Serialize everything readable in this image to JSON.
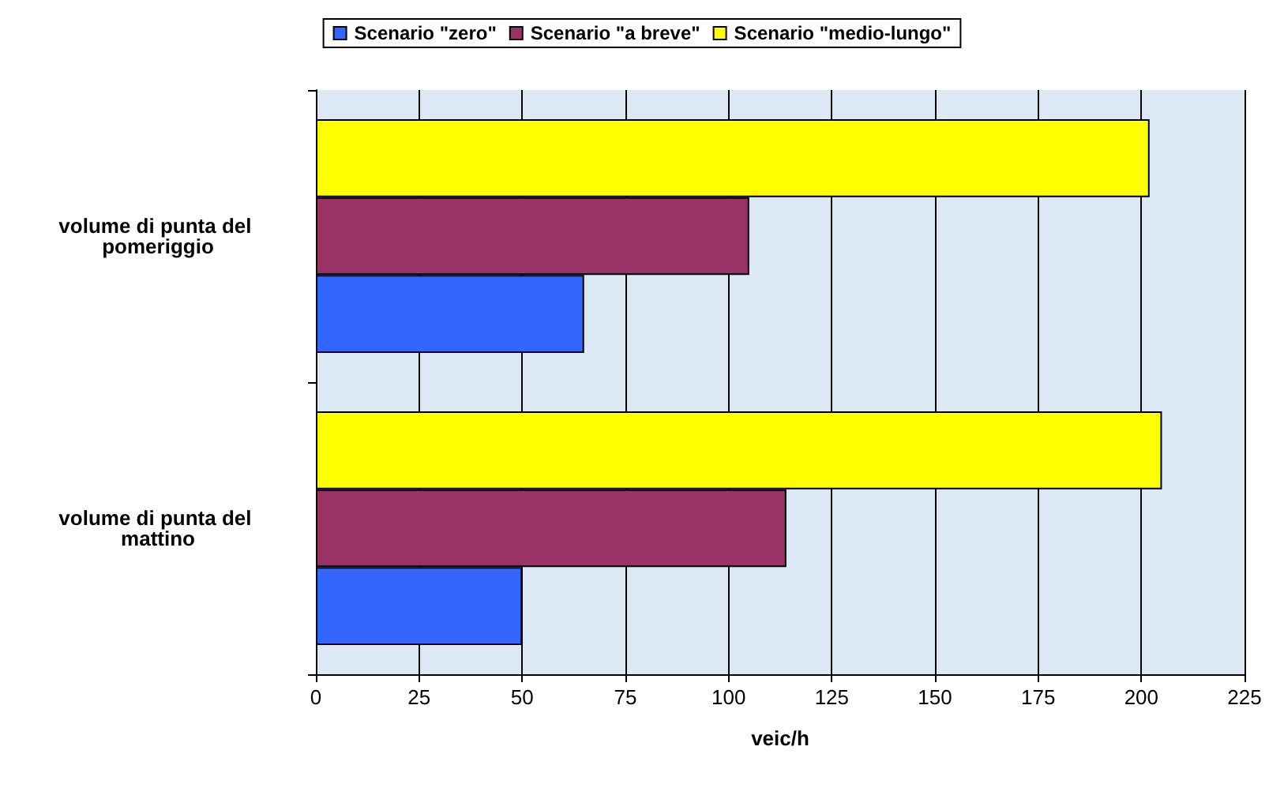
{
  "chart_data": {
    "type": "bar",
    "orientation": "horizontal",
    "xlabel": "veic/h",
    "categories": [
      "volume di punta del pomeriggio",
      "volume di punta del mattino"
    ],
    "series": [
      {
        "name": "Scenario \"zero\"",
        "color": "#3366ff",
        "values": [
          65,
          50
        ]
      },
      {
        "name": "Scenario \"a breve\"",
        "color": "#993366",
        "values": [
          105,
          114
        ]
      },
      {
        "name": "Scenario \"medio-lungo\"",
        "color": "#ffff00",
        "values": [
          202,
          205
        ]
      }
    ],
    "xlim": [
      0,
      225
    ],
    "xticks": [
      0,
      25,
      50,
      75,
      100,
      125,
      150,
      175,
      200,
      225
    ],
    "grid": "x",
    "legend": "top"
  }
}
